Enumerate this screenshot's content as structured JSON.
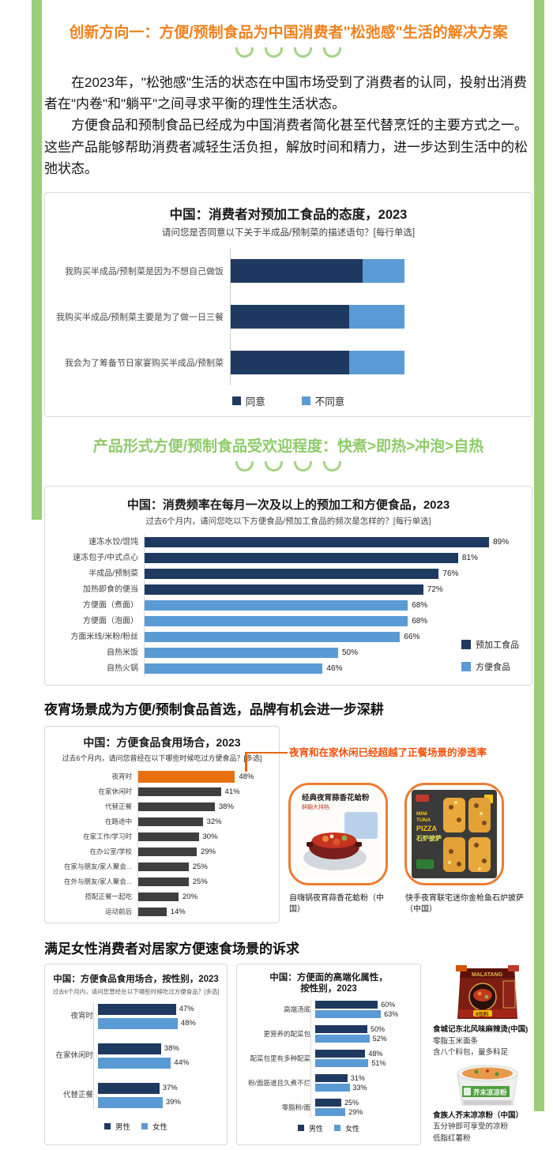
{
  "page_title": "创新方向一：方便/预制食品为中国消费者\"松弛感\"生活的解决方案",
  "intro": {
    "p1": "在2023年，\"松弛感\"生活的状态在中国市场受到了消费者的认同，投射出消费者在\"内卷\"和\"躺平\"之间寻求平衡的理性生活状态。",
    "p2": "方便食品和预制食品已经成为中国消费者简化甚至代替烹饪的主要方式之一。这些产品能够帮助消费者减轻生活负担，解放时间和精力，进一步达到生活中的松弛状态。"
  },
  "sections": {
    "s2_title": "产品形式方便/预制食品受欢迎程度：快煮>即热>冲泡>自热",
    "s3_title": "夜宵场景成为方便/预制食品首选，品牌有机会进一步深耕",
    "s3_annotation": "夜宵和在家休闲已经超越了正餐场景的渗透率",
    "s4_title": "满足女性消费者对居家方便速食场景的诉求"
  },
  "colors": {
    "green_stripe": "#9CCD7A",
    "green_title": "#8FCB6B",
    "orange_title": "#F0821E",
    "navy": "#1F3A60",
    "blue": "#5B9BD5",
    "dark_bar": "#3F3F3F",
    "orange_bar": "#E8700E",
    "annotation": "#F3500C",
    "card_border": "#ED7D31"
  },
  "chart_data": [
    {
      "type": "stacked-bar",
      "title": "中国：消费者对预加工食品的态度，2023",
      "subtitle": "请问您是否同意以下关于半成品/预制菜的描述语句？[每行单选]",
      "categories": [
        "我购买半成品/预制菜是因为不想自己做饭",
        "我购买半成品/预制菜主要是为了做一日三餐",
        "我会为了筹备节日家宴购买半成品/预制菜"
      ],
      "series": [
        {
          "name": "同意",
          "color": "#1F3A60",
          "values": [
            76,
            68,
            68
          ]
        },
        {
          "name": "不同意",
          "color": "#5B9BD5",
          "values": [
            24,
            32,
            32
          ]
        }
      ],
      "xlim": [
        0,
        100
      ]
    },
    {
      "type": "bar",
      "title": "中国：消费频率在每月一次及以上的预加工和方便食品，2023",
      "subtitle": "过去6个月内，请问您吃以下方便食品/预加工食品的频次是怎样的？[每行单选]",
      "categories": [
        "速冻水饺/馄饨",
        "速冻包子/中式点心",
        "半成品/预制菜",
        "加热即食的便当",
        "方便面（煮面）",
        "方便面（泡面）",
        "方面米线/米粉/粉丝",
        "自热米饭",
        "自热火锅"
      ],
      "values": [
        89,
        81,
        76,
        72,
        68,
        68,
        66,
        50,
        46
      ],
      "bar_colors": [
        "#1F3A60",
        "#1F3A60",
        "#1F3A60",
        "#1F3A60",
        "#5B9BD5",
        "#5B9BD5",
        "#5B9BD5",
        "#5B9BD5",
        "#5B9BD5"
      ],
      "legend": [
        {
          "label": "预加工食品",
          "color": "#1F3A60"
        },
        {
          "label": "方便食品",
          "color": "#5B9BD5"
        }
      ]
    },
    {
      "type": "bar",
      "title": "中国：方便食品食用场合，2023",
      "subtitle": "过去6个月内，请问您曾经在以下哪些时候吃过方便食品？[多选]",
      "categories": [
        "夜宵时",
        "在家休闲时",
        "代替正餐",
        "在路途中",
        "在家工作/学习时",
        "在办公室/学校",
        "在家与朋友/家人聚会...",
        "在外与朋友/家人聚会...",
        "搭配正餐一起吃",
        "运动前后"
      ],
      "values": [
        48,
        41,
        38,
        32,
        30,
        29,
        25,
        25,
        20,
        14
      ],
      "bar_colors": [
        "#E8700E",
        "#3F3F3F",
        "#3F3F3F",
        "#3F3F3F",
        "#3F3F3F",
        "#3F3F3F",
        "#3F3F3F",
        "#3F3F3F",
        "#3F3F3F",
        "#3F3F3F"
      ]
    },
    {
      "type": "grouped-bar",
      "title": "中国：方便食品食用场合，按性别，2023",
      "subtitle": "过去6个月内，请问您曾经在以下哪些时候吃过方便食品？[多选]",
      "categories": [
        "夜宵时",
        "在家休闲时",
        "代替正餐"
      ],
      "series": [
        {
          "name": "男性",
          "color": "#1F3A60",
          "values": [
            47,
            38,
            37
          ]
        },
        {
          "name": "女性",
          "color": "#5B9BD5",
          "values": [
            48,
            44,
            39
          ]
        }
      ]
    },
    {
      "type": "grouped-bar",
      "title": "中国：方便面的高端化属性，",
      "title2": "按性别，2023",
      "categories": [
        "高端汤底",
        "更营养的配菜包",
        "配菜包里有多种配菜",
        "粉/面筋道且久煮不烂",
        "零脂粉/面"
      ],
      "series": [
        {
          "name": "男性",
          "color": "#1F3A60",
          "values": [
            60,
            50,
            48,
            31,
            25
          ]
        },
        {
          "name": "女性",
          "color": "#5B9BD5",
          "values": [
            63,
            52,
            51,
            33,
            29
          ]
        }
      ]
    }
  ],
  "night_products": [
    {
      "caption": "自嗨锅夜宵蒜香花蛤粉（中国）",
      "img_label": "经典夜宵蒜香花蛤粉",
      "img_sub": "鲜翻大排档"
    },
    {
      "caption": "快手夜宵联宅迷你金枪鱼石炉披萨（中国）",
      "img_label": "PIZZA",
      "img_sub": "石炉披萨"
    }
  ],
  "female_products": [
    {
      "name": "食城记东北风味麻辣烫(中国)",
      "img_label": "MALATANG",
      "img_chip": "8包料",
      "lines": [
        "零脂玉米面条",
        "含八个料包，量多料足"
      ]
    },
    {
      "name": "食族人芥末凉凉粉（中国）",
      "img_label": "芥末凉凉粉",
      "lines": [
        "五分钟即可享受的凉粉",
        "低脂红薯粉"
      ]
    }
  ]
}
